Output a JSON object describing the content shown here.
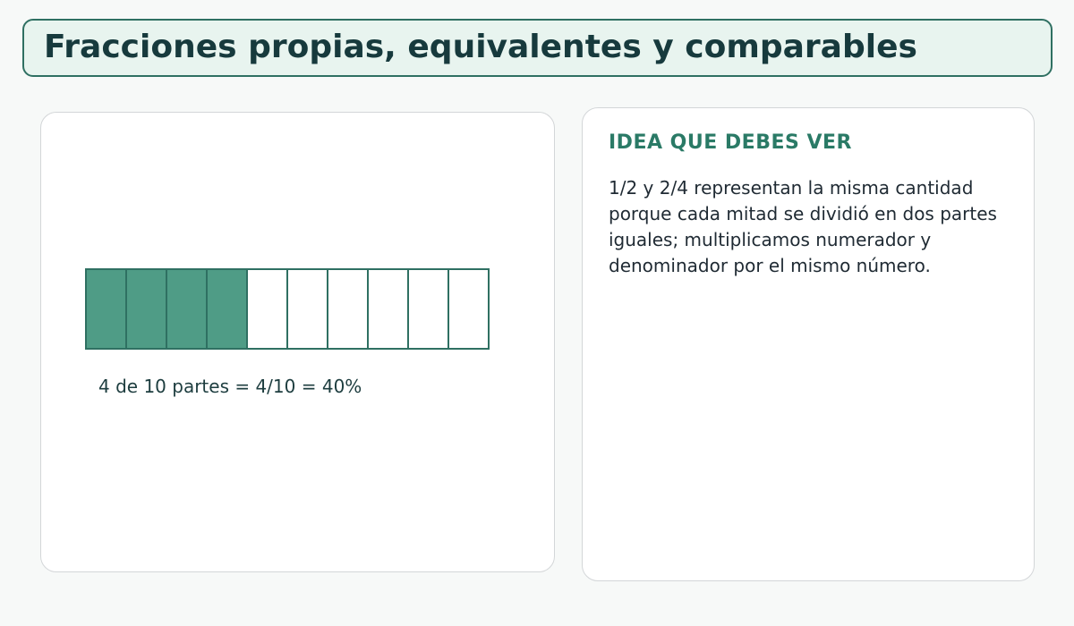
{
  "header": {
    "title": "Fracciones propias, equivalentes y comparables"
  },
  "fraction_model": {
    "total_parts": 10,
    "shaded_parts": 4,
    "caption": "4 de 10 partes = 4/10 = 40%",
    "colors": {
      "shaded_fill": "#4f9c86",
      "empty_fill": "#ffffff",
      "cell_stroke": "#2f7062"
    }
  },
  "idea_panel": {
    "heading": "IDEA QUE DEBES VER",
    "body": "1/2 y 2/4 representan la misma cantidad porque cada mitad se dividió en dos partes iguales; multiplicamos numerador y denominador por el mismo número."
  }
}
